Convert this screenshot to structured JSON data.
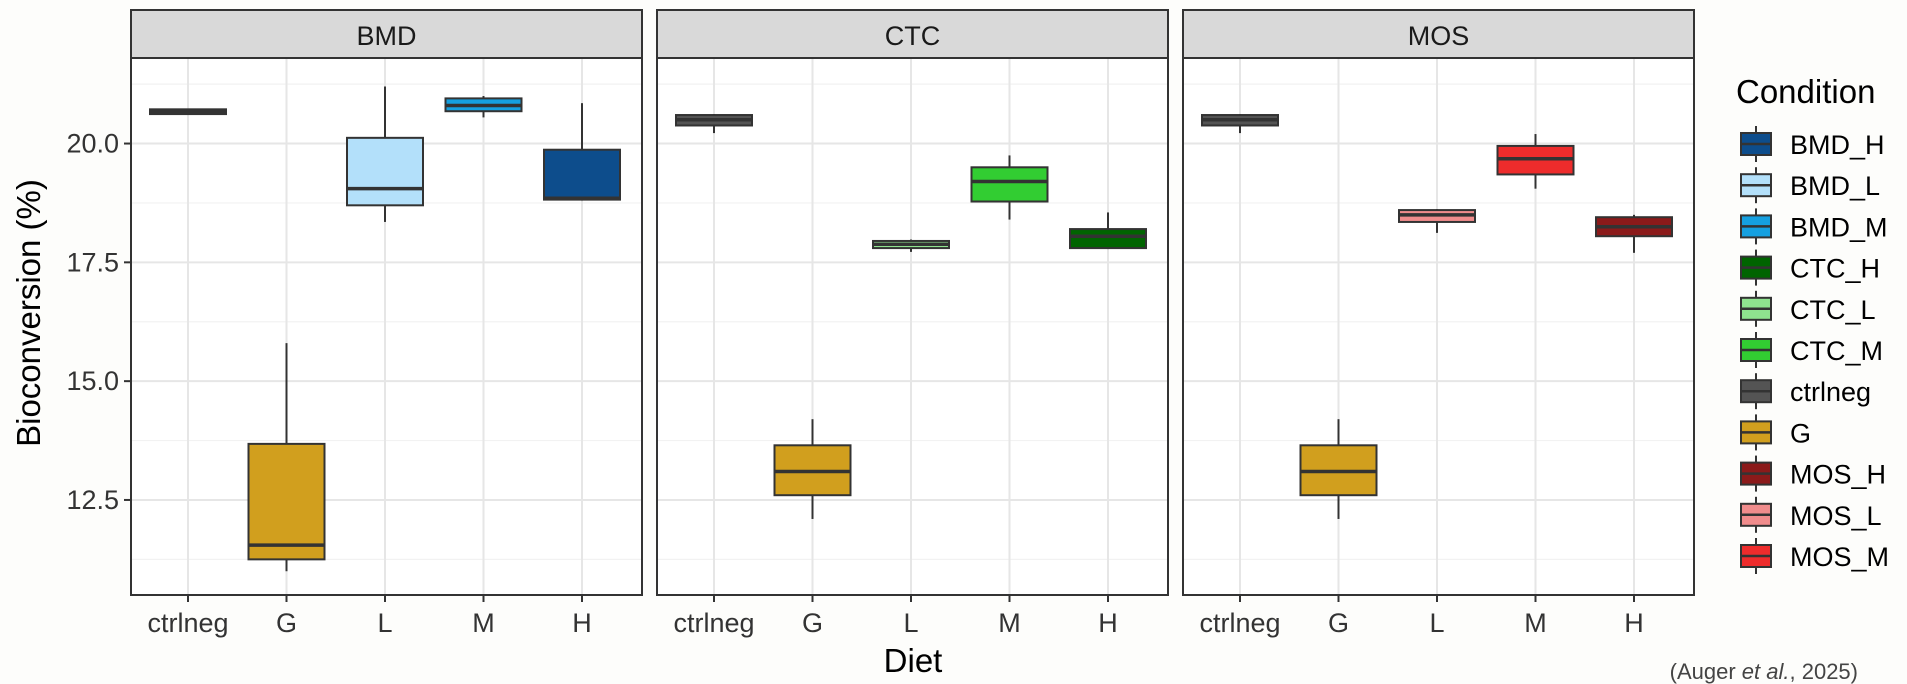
{
  "chart_data": {
    "type": "boxplot",
    "facets": [
      "BMD",
      "CTC",
      "MOS"
    ],
    "categories": [
      "ctrlneg",
      "G",
      "L",
      "M",
      "H"
    ],
    "xlabel": "Diet",
    "ylabel": "Bioconversion (%)",
    "ylim": [
      10.5,
      21.8
    ],
    "yticks": [
      12.5,
      15.0,
      17.5,
      20.0
    ],
    "ytick_labels": [
      "12.5",
      "15.0",
      "17.5",
      "20.0"
    ],
    "legend_title": "Condition",
    "legend_position": "right",
    "grid": true,
    "legend": [
      {
        "name": "BMD_H",
        "color": "#0d4d8c"
      },
      {
        "name": "BMD_L",
        "color": "#b3e0fa"
      },
      {
        "name": "BMD_M",
        "color": "#15a0e0"
      },
      {
        "name": "CTC_H",
        "color": "#006400"
      },
      {
        "name": "CTC_L",
        "color": "#8fe38f"
      },
      {
        "name": "CTC_M",
        "color": "#32cd32"
      },
      {
        "name": "ctrlneg",
        "color": "#545454"
      },
      {
        "name": "G",
        "color": "#d19f1e"
      },
      {
        "name": "MOS_H",
        "color": "#8b1a1a"
      },
      {
        "name": "MOS_L",
        "color": "#f08c8c"
      },
      {
        "name": "MOS_M",
        "color": "#ee2c2c"
      }
    ],
    "boxes": [
      {
        "facet": "BMD",
        "category": "ctrlneg",
        "condition": "ctrlneg",
        "min": 20.62,
        "q1": 20.62,
        "median": 20.67,
        "q3": 20.72,
        "max": 20.72
      },
      {
        "facet": "BMD",
        "category": "G",
        "condition": "G",
        "min": 11.0,
        "q1": 11.25,
        "median": 11.55,
        "q3": 13.68,
        "max": 15.8
      },
      {
        "facet": "BMD",
        "category": "L",
        "condition": "BMD_L",
        "min": 18.35,
        "q1": 18.7,
        "median": 19.05,
        "q3": 20.12,
        "max": 21.2
      },
      {
        "facet": "BMD",
        "category": "M",
        "condition": "BMD_M",
        "min": 20.55,
        "q1": 20.68,
        "median": 20.8,
        "q3": 20.95,
        "max": 21.0
      },
      {
        "facet": "BMD",
        "category": "H",
        "condition": "BMD_H",
        "min": 18.8,
        "q1": 18.82,
        "median": 18.85,
        "q3": 19.87,
        "max": 20.85
      },
      {
        "facet": "CTC",
        "category": "ctrlneg",
        "condition": "ctrlneg",
        "min": 20.22,
        "q1": 20.38,
        "median": 20.5,
        "q3": 20.6,
        "max": 20.62
      },
      {
        "facet": "CTC",
        "category": "G",
        "condition": "G",
        "min": 12.1,
        "q1": 12.6,
        "median": 13.1,
        "q3": 13.65,
        "max": 14.2
      },
      {
        "facet": "CTC",
        "category": "L",
        "condition": "CTC_L",
        "min": 17.72,
        "q1": 17.8,
        "median": 17.88,
        "q3": 17.95,
        "max": 17.98
      },
      {
        "facet": "CTC",
        "category": "M",
        "condition": "CTC_M",
        "min": 18.4,
        "q1": 18.78,
        "median": 19.2,
        "q3": 19.5,
        "max": 19.75
      },
      {
        "facet": "CTC",
        "category": "H",
        "condition": "CTC_H",
        "min": 17.78,
        "q1": 17.8,
        "median": 18.05,
        "q3": 18.2,
        "max": 18.55
      },
      {
        "facet": "MOS",
        "category": "ctrlneg",
        "condition": "ctrlneg",
        "min": 20.22,
        "q1": 20.38,
        "median": 20.5,
        "q3": 20.6,
        "max": 20.62
      },
      {
        "facet": "MOS",
        "category": "G",
        "condition": "G",
        "min": 12.1,
        "q1": 12.6,
        "median": 13.1,
        "q3": 13.65,
        "max": 14.2
      },
      {
        "facet": "MOS",
        "category": "L",
        "condition": "MOS_L",
        "min": 18.12,
        "q1": 18.35,
        "median": 18.5,
        "q3": 18.6,
        "max": 18.62
      },
      {
        "facet": "MOS",
        "category": "M",
        "condition": "MOS_M",
        "min": 19.05,
        "q1": 19.35,
        "median": 19.68,
        "q3": 19.95,
        "max": 20.2
      },
      {
        "facet": "MOS",
        "category": "H",
        "condition": "MOS_H",
        "min": 17.7,
        "q1": 18.05,
        "median": 18.25,
        "q3": 18.45,
        "max": 18.5
      }
    ]
  },
  "caption": {
    "prefix": "(Auger ",
    "italic": "et al.",
    "suffix": ", 2025)"
  }
}
